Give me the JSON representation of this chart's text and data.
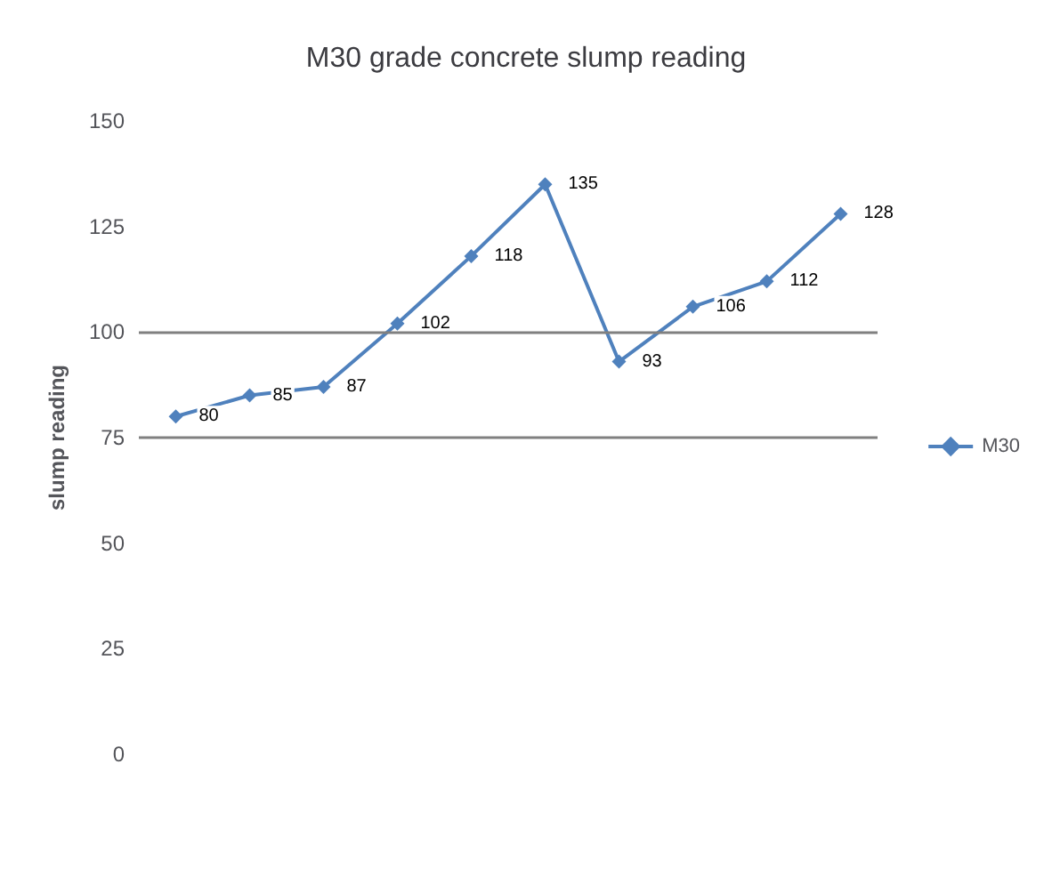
{
  "chart_data": {
    "type": "line",
    "title": "M30 grade concrete slump reading",
    "ylabel": "slump reading",
    "categories": [
      null,
      null,
      null,
      null,
      null,
      null,
      null,
      null,
      null,
      null
    ],
    "series": [
      {
        "name": "M30",
        "color": "#4f81bd",
        "values": [
          80,
          85,
          87,
          102,
          118,
          135,
          93,
          106,
          112,
          128
        ]
      }
    ],
    "ylim": [
      0,
      150
    ],
    "yticks": [
      0,
      25,
      50,
      75,
      100,
      125,
      150
    ],
    "ref_lines": [
      {
        "axis": "y",
        "value": 75,
        "color": "#808080"
      },
      {
        "axis": "y",
        "value": 100,
        "color": "#808080"
      }
    ],
    "grid": false,
    "legend": "right",
    "marker": "diamond",
    "data_labels": true
  }
}
